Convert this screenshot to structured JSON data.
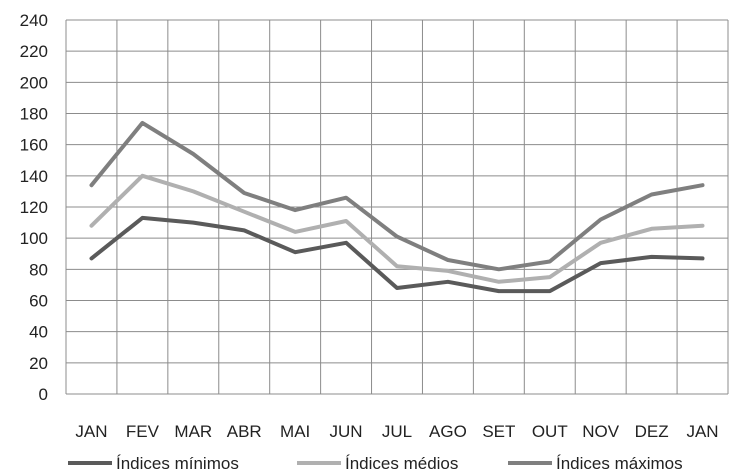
{
  "chart_data": {
    "type": "line",
    "categories": [
      "JAN",
      "FEV",
      "MAR",
      "ABR",
      "MAI",
      "JUN",
      "JUL",
      "AGO",
      "SET",
      "OUT",
      "NOV",
      "DEZ",
      "JAN"
    ],
    "ylim": [
      0,
      240
    ],
    "y_ticks": [
      0,
      20,
      40,
      60,
      80,
      100,
      120,
      140,
      160,
      180,
      200,
      220,
      240
    ],
    "grid": true,
    "legend_position": "bottom",
    "series": [
      {
        "name": "Índices mínimos",
        "color": "#5a5a5a",
        "values": [
          87,
          113,
          110,
          105,
          91,
          97,
          68,
          72,
          66,
          66,
          84,
          88,
          87
        ]
      },
      {
        "name": "Índices médios",
        "color": "#b0b0b0",
        "values": [
          108,
          140,
          130,
          117,
          104,
          111,
          82,
          79,
          72,
          75,
          97,
          106,
          108
        ]
      },
      {
        "name": "Índices máximos",
        "color": "#7f7f7f",
        "values": [
          134,
          174,
          154,
          129,
          118,
          126,
          101,
          86,
          80,
          85,
          112,
          128,
          134
        ]
      }
    ]
  }
}
